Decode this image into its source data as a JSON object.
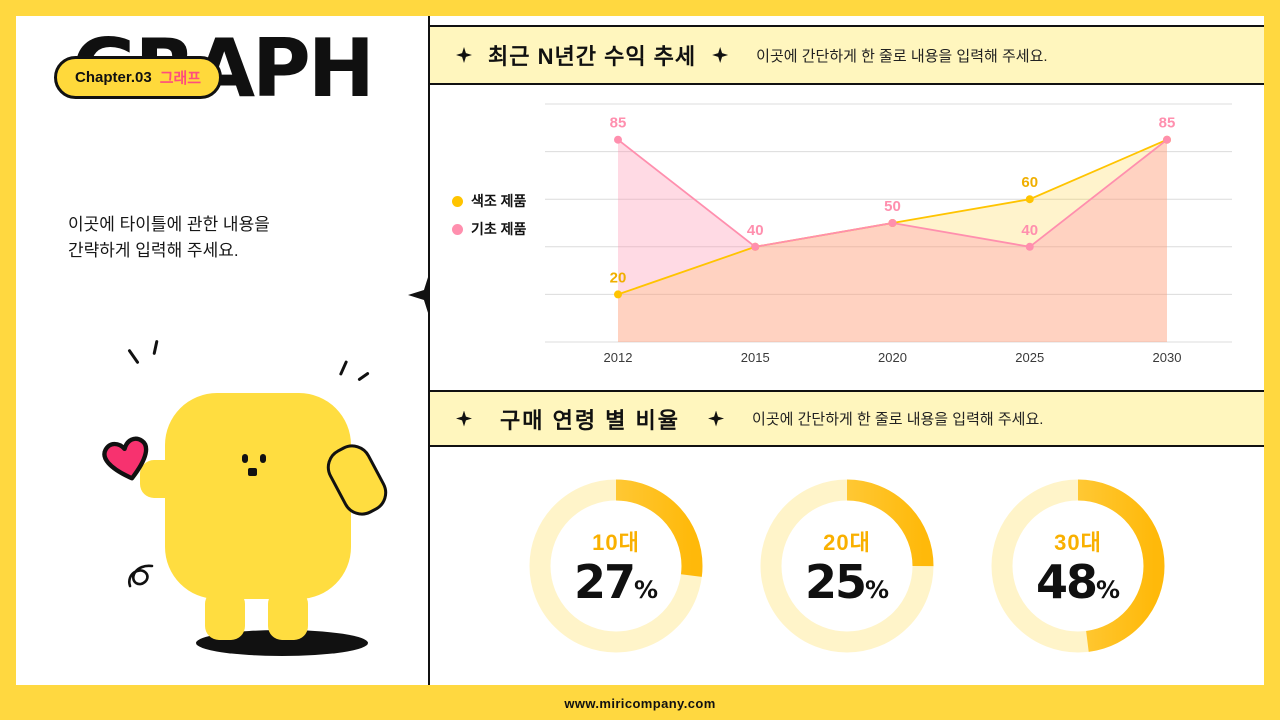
{
  "meta": {
    "footer_url": "www.miricompany.com"
  },
  "icons": {
    "sparkle_icon": "✦"
  },
  "colors": {
    "frame_yellow": "#FFD840",
    "header_yellow": "#FFF6BE",
    "mascot_yellow": "#FFDD40",
    "gold": "#FFC400",
    "pink": "#FF8FAE",
    "badge_pink_text": "#FF4D7D",
    "heart_pink": "#F7326F",
    "black": "#111111"
  },
  "left_panel": {
    "title": "GRAPH",
    "badge": {
      "chapter": "Chapter.03",
      "topic": "그래프"
    },
    "description": [
      "이곳에 타이틀에 관한 내용을",
      "간략하게 입력해 주세요."
    ]
  },
  "sections": {
    "trend": {
      "title": "최근 N년간 수익 추세",
      "subtitle": "이곳에 간단하게 한 줄로 내용을 입력해 주세요."
    },
    "age": {
      "title": "구매 연령 별 비율",
      "subtitle": "이곳에 간단하게 한 줄로 내용을 입력해 주세요."
    }
  },
  "chart_data": [
    {
      "type": "area",
      "title": "최근 N년간 수익 추세",
      "x": [
        "2012",
        "2015",
        "2020",
        "2025",
        "2030"
      ],
      "ylim": [
        0,
        100
      ],
      "grid": true,
      "grid_step": 20,
      "legend_position": "left",
      "series": [
        {
          "name": "색조 제품",
          "color": "#FFC400",
          "fill": "rgba(255,196,0,0.20)",
          "label_color": "#F0AF00",
          "values": [
            20,
            40,
            50,
            60,
            85
          ],
          "labels": [
            20,
            null,
            null,
            60,
            null
          ]
        },
        {
          "name": "기초 제품",
          "color": "#FF8FAE",
          "fill": "rgba(255,139,170,0.32)",
          "label_color": "#FF8FAE",
          "values": [
            85,
            40,
            50,
            40,
            85
          ],
          "labels": [
            85,
            40,
            50,
            40,
            85
          ]
        }
      ]
    },
    {
      "type": "donut",
      "title": "구매 연령 별 비율",
      "items": [
        {
          "label": "10대",
          "value": 27
        },
        {
          "label": "20대",
          "value": 25
        },
        {
          "label": "30대",
          "value": 48
        }
      ],
      "track_color": "#FFF4C9",
      "arc_colors": [
        "#FFD75E",
        "#FFB90A"
      ],
      "label_color": "#F9B000"
    }
  ]
}
